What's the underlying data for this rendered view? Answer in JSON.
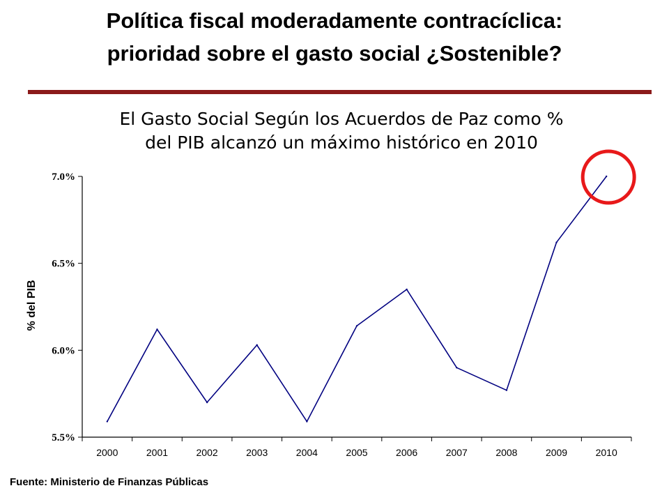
{
  "header": {
    "title_line1": "Política fiscal moderadamente contracíclica:",
    "title_line2": "prioridad sobre el gasto social ¿Sostenible?",
    "accent_color": "#8b1a1a"
  },
  "chart_data": {
    "type": "line",
    "title_line1": "El Gasto Social Según los Acuerdos de Paz como %",
    "title_line2": "del PIB alcanzó un máximo histórico en 2010",
    "xlabel": "",
    "ylabel": "% del PIB",
    "categories": [
      "2000",
      "2001",
      "2002",
      "2003",
      "2004",
      "2005",
      "2006",
      "2007",
      "2008",
      "2009",
      "2010"
    ],
    "series": [
      {
        "values": [
          5.59,
          6.12,
          5.7,
          6.03,
          5.59,
          6.14,
          6.35,
          5.9,
          5.77,
          6.62,
          7.0
        ],
        "color": "#000080"
      }
    ],
    "ylim": [
      5.5,
      7.0
    ],
    "yticks": [
      5.5,
      6.0,
      6.5,
      7.0
    ],
    "ytick_labels": [
      "5.5%",
      "6.0%",
      "6.5%",
      "7.0%"
    ],
    "grid": false,
    "highlight": {
      "category": "2010",
      "shape": "circle",
      "color": "#e8191a"
    }
  },
  "footer": {
    "source": "Fuente: Ministerio de Finanzas Públicas"
  }
}
